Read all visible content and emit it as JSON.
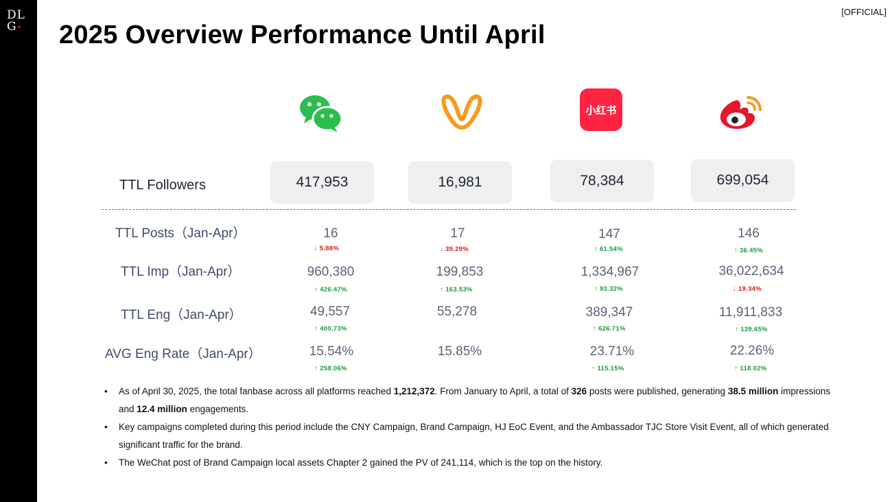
{
  "header": {
    "logo_top": "DL",
    "logo_bottom": "G",
    "logo_dot": "•",
    "tag": "[OFFICIAL]",
    "title": "2025 Overview Performance Until April"
  },
  "platform_icons": [
    "wechat-icon",
    "channels-icon",
    "xiaohongshu-icon",
    "weibo-icon"
  ],
  "xhs_icon_text": "小红书",
  "colors": {
    "wechat": "#2bbd4d",
    "channels": "#f79a1e",
    "xiaohongshu": "#ff2442",
    "weibo": "#e6162d",
    "up": "#1d9a3d",
    "down": "#d0211a"
  },
  "followers": {
    "label": "TTL Followers",
    "values": [
      "417,953",
      "16,981",
      "78,384",
      "699,054"
    ]
  },
  "metrics": [
    {
      "label": "TTL Posts（Jan-Apr）",
      "values": [
        "16",
        "17",
        "147",
        "146"
      ],
      "changes": [
        "↓ 5.88%",
        "↓ 39.29%",
        "↑ 61.54%",
        "↑ 36.45%"
      ]
    },
    {
      "label": "TTL Imp（Jan-Apr）",
      "values": [
        "960,380",
        "199,853",
        "1,334,967",
        "36,022,634"
      ],
      "changes": [
        "↑ 426.47%",
        "↑ 163.53%",
        "↑ 93.32%",
        "↓ 19.34%"
      ]
    },
    {
      "label": "TTL Eng（Jan-Apr）",
      "values": [
        "49,557",
        "55,278",
        "389,347",
        "11,911,833"
      ],
      "changes": [
        "↑ 400.73%",
        "",
        "↑ 626.71%",
        "↑ 139.65%"
      ]
    },
    {
      "label": "AVG Eng Rate（Jan-Apr）",
      "values": [
        "15.54%",
        "15.85%",
        "23.71%",
        "22.26%"
      ],
      "changes": [
        "↑ 258.06%",
        "",
        "↑ 115.15%",
        "↑ 118.02%"
      ]
    }
  ],
  "bullets": {
    "b1_p1": "As of April 30, 2025, the total fanbase across all platforms reached ",
    "b1_fans": "1,212,372",
    "b1_p2": ". From January to April, a total of ",
    "b1_posts": "326",
    "b1_p3": " posts were published, generating ",
    "b1_imp": "38.5 million",
    "b1_p4": " impressions and ",
    "b1_eng": "12.4 million",
    "b1_p5": " engagements.",
    "b2": "Key campaigns completed during this period include the CNY Campaign, Brand Campaign, HJ EoC Event, and the Ambassador TJC Store Visit Event, all of which generated significant traffic for the brand.",
    "b3": "The WeChat post of Brand Campaign local assets Chapter 2 gained the PV of 241,114, which is the top on the history.",
    "marker": "•"
  }
}
